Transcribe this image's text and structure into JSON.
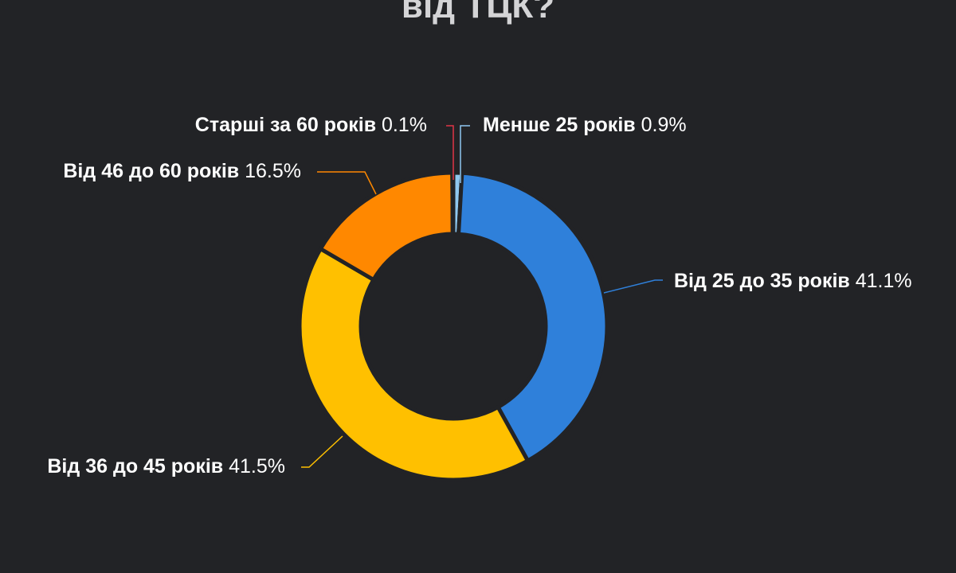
{
  "chart_data": {
    "type": "pie",
    "donut": true,
    "title": "від ТЦК?",
    "slices": [
      {
        "label": "Менше 25 років",
        "value": 0.9,
        "value_label": "0.9%",
        "color": "#8fc8f0"
      },
      {
        "label": "Від 25 до 35 років",
        "value": 41.1,
        "value_label": "41.1%",
        "color": "#2f80da"
      },
      {
        "label": "Від 36 до 45 років",
        "value": 41.5,
        "value_label": "41.5%",
        "color": "#ffc000"
      },
      {
        "label": "Від 46 до 60 років",
        "value": 16.5,
        "value_label": "16.5%",
        "color": "#ff8800"
      },
      {
        "label": "Старші за 60 років",
        "value": 0.1,
        "value_label": "0.1%",
        "color": "#e03546"
      }
    ]
  }
}
